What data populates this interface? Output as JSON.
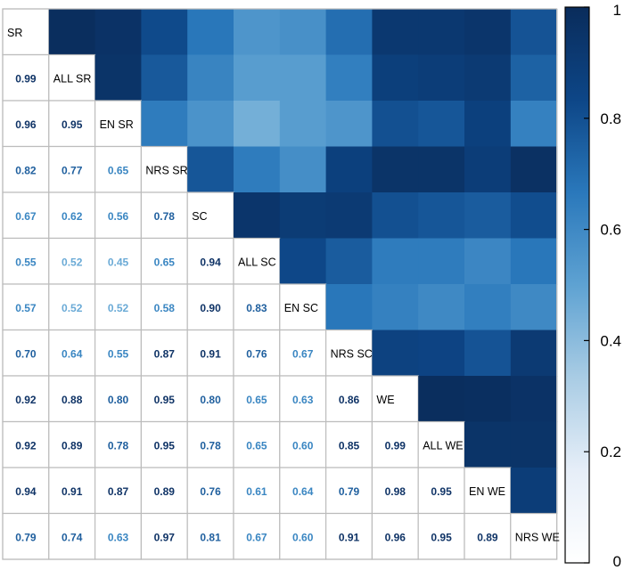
{
  "chart_data": {
    "type": "heatmap",
    "variables": [
      "SR",
      "ALL SR",
      "EN SR",
      "NRS SR",
      "SC",
      "ALL SC",
      "EN SC",
      "NRS SC",
      "WE",
      "ALL WE",
      "EN WE",
      "NRS WE"
    ],
    "lower_values": [
      [],
      [
        "0.99"
      ],
      [
        "0.96",
        "0.95"
      ],
      [
        "0.82",
        "0.77",
        "0.65"
      ],
      [
        "0.67",
        "0.62",
        "0.56",
        "0.78"
      ],
      [
        "0.55",
        "0.52",
        "0.45",
        "0.65",
        "0.94"
      ],
      [
        "0.57",
        "0.52",
        "0.52",
        "0.58",
        "0.90",
        "0.83"
      ],
      [
        "0.70",
        "0.64",
        "0.55",
        "0.87",
        "0.91",
        "0.76",
        "0.67"
      ],
      [
        "0.92",
        "0.88",
        "0.80",
        "0.95",
        "0.80",
        "0.65",
        "0.63",
        "0.86"
      ],
      [
        "0.92",
        "0.89",
        "0.78",
        "0.95",
        "0.78",
        "0.65",
        "0.60",
        "0.85",
        "0.99"
      ],
      [
        "0.94",
        "0.91",
        "0.87",
        "0.89",
        "0.76",
        "0.61",
        "0.64",
        "0.79",
        "0.98",
        "0.95"
      ],
      [
        "0.79",
        "0.74",
        "0.63",
        "0.97",
        "0.81",
        "0.67",
        "0.60",
        "0.91",
        "0.96",
        "0.95",
        "0.89"
      ]
    ],
    "colorbar": {
      "range": [
        0,
        1
      ],
      "ticks": [
        "0",
        "0.2",
        "0.4",
        "0.6",
        "0.8",
        "1"
      ],
      "colors": [
        "#ffffff",
        "#e6eef8",
        "#a9cce4",
        "#5ea2d2",
        "#2a78bb",
        "#0d4687",
        "#0a2c5b"
      ]
    }
  }
}
